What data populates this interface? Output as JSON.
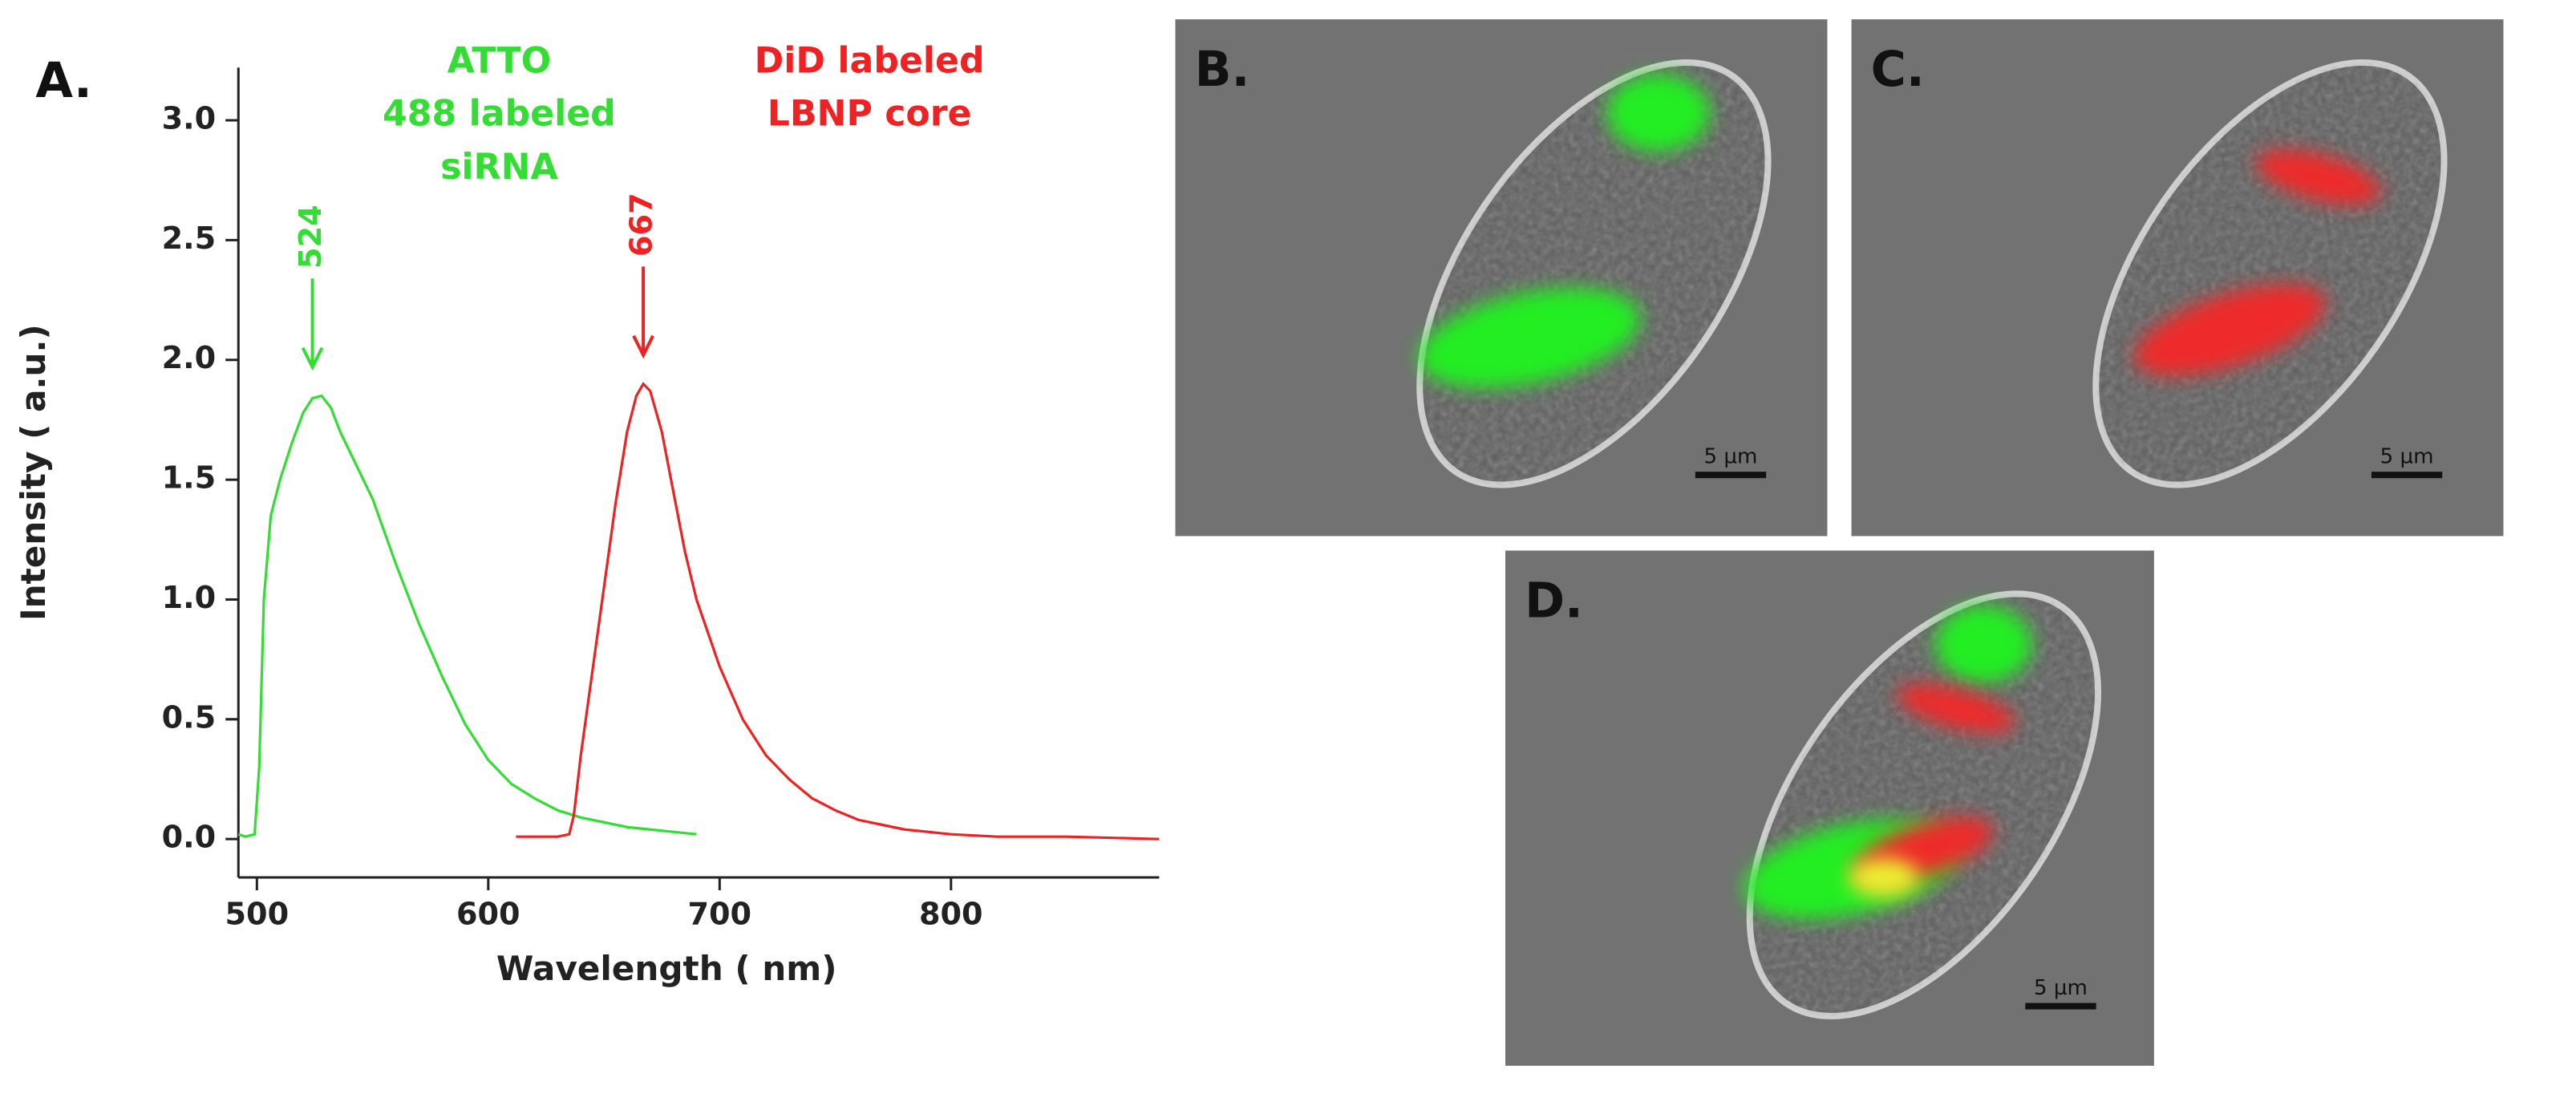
{
  "chart_data": {
    "type": "line",
    "panel_label": "A.",
    "xlabel": "Wavelength ( nm)",
    "ylabel": "Intensity ( a.u.)",
    "xlim": [
      492,
      890
    ],
    "ylim": [
      -0.16,
      3.22
    ],
    "xticks": [
      500,
      600,
      700,
      800
    ],
    "yticks": [
      {
        "value": 0,
        "label": "0.0"
      },
      0.5,
      {
        "value": 1,
        "label": "1.0"
      },
      1.5,
      {
        "value": 2,
        "label": "2.0"
      },
      2.5,
      {
        "value": 3,
        "label": "3.0"
      }
    ],
    "series": [
      {
        "name": "ATTO\n488 labeled\nsiRNA",
        "color": "#33dd33",
        "x": [
          492,
          495,
          499,
          501,
          503,
          506,
          510,
          515,
          520,
          524,
          528,
          532,
          536,
          540,
          550,
          560,
          570,
          580,
          590,
          600,
          610,
          620,
          630,
          640,
          650,
          660,
          670,
          680,
          690
        ],
        "values": [
          0.02,
          0.01,
          0.02,
          0.3,
          1.0,
          1.35,
          1.5,
          1.65,
          1.78,
          1.84,
          1.85,
          1.8,
          1.7,
          1.62,
          1.42,
          1.15,
          0.9,
          0.68,
          0.48,
          0.33,
          0.23,
          0.17,
          0.12,
          0.09,
          0.07,
          0.05,
          0.04,
          0.03,
          0.02
        ]
      },
      {
        "name": "DiD labeled\nLBNP core",
        "color": "#ee2222",
        "x": [
          612,
          620,
          630,
          635,
          637,
          640,
          645,
          650,
          655,
          660,
          664,
          667,
          670,
          675,
          680,
          685,
          690,
          700,
          710,
          720,
          730,
          740,
          750,
          760,
          770,
          780,
          800,
          820,
          850,
          890
        ],
        "values": [
          0.01,
          0.01,
          0.01,
          0.02,
          0.1,
          0.35,
          0.7,
          1.05,
          1.4,
          1.7,
          1.85,
          1.9,
          1.87,
          1.7,
          1.45,
          1.2,
          1.0,
          0.72,
          0.5,
          0.35,
          0.25,
          0.17,
          0.12,
          0.08,
          0.06,
          0.04,
          0.02,
          0.01,
          0.01,
          0.0
        ]
      }
    ],
    "annotations": [
      {
        "text": "524",
        "x": 524,
        "y": 1.97,
        "color": "#33dd33"
      },
      {
        "text": "667",
        "x": 667,
        "y": 2.02,
        "color": "#ee2222"
      }
    ]
  },
  "panels": [
    {
      "label": "B.",
      "scale_bar": "5 µm"
    },
    {
      "label": "C.",
      "scale_bar": "5 µm"
    },
    {
      "label": "D.",
      "scale_bar": "5 µm"
    }
  ]
}
